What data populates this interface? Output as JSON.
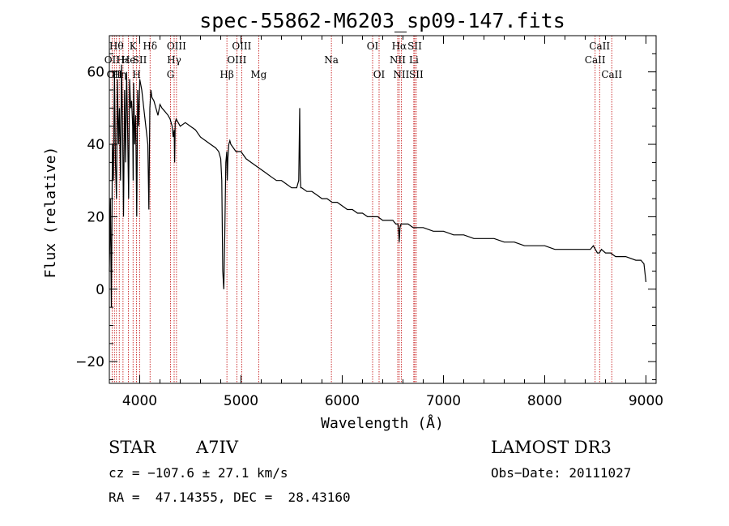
{
  "chart_data": {
    "type": "line",
    "title": "spec-55862-M6203_sp09-147.fits",
    "xlabel": "Wavelength (Å)",
    "ylabel": "Flux (relative)",
    "xlim": [
      3700,
      9100
    ],
    "ylim": [
      -26,
      70
    ],
    "xticks": [
      4000,
      5000,
      6000,
      7000,
      8000,
      9000
    ],
    "yticks": [
      -20,
      0,
      20,
      40,
      60
    ],
    "colors": {
      "line": "#000000",
      "markers": "#c00000",
      "axes": "#000000"
    },
    "spectrum": {
      "name": "flux",
      "x": [
        3700,
        3710,
        3720,
        3730,
        3740,
        3750,
        3760,
        3770,
        3780,
        3790,
        3800,
        3810,
        3820,
        3830,
        3840,
        3850,
        3860,
        3870,
        3880,
        3890,
        3900,
        3910,
        3920,
        3930,
        3935,
        3940,
        3950,
        3960,
        3970,
        3980,
        3990,
        4000,
        4020,
        4040,
        4060,
        4080,
        4090,
        4100,
        4110,
        4120,
        4140,
        4160,
        4180,
        4200,
        4220,
        4250,
        4280,
        4300,
        4320,
        4330,
        4340,
        4345,
        4350,
        4360,
        4380,
        4400,
        4450,
        4500,
        4550,
        4600,
        4650,
        4700,
        4750,
        4780,
        4800,
        4810,
        4820,
        4830,
        4840,
        4850,
        4860,
        4865,
        4870,
        4880,
        4890,
        4900,
        4950,
        5000,
        5050,
        5100,
        5150,
        5200,
        5250,
        5300,
        5350,
        5400,
        5450,
        5500,
        5550,
        5570,
        5575,
        5580,
        5585,
        5590,
        5600,
        5650,
        5700,
        5750,
        5800,
        5850,
        5900,
        5950,
        6000,
        6050,
        6100,
        6150,
        6200,
        6250,
        6300,
        6350,
        6400,
        6450,
        6500,
        6530,
        6550,
        6560,
        6563,
        6570,
        6580,
        6600,
        6650,
        6700,
        6750,
        6800,
        6900,
        7000,
        7100,
        7200,
        7300,
        7400,
        7500,
        7600,
        7700,
        7800,
        7900,
        8000,
        8100,
        8200,
        8300,
        8400,
        8450,
        8480,
        8500,
        8520,
        8540,
        8560,
        8600,
        8650,
        8700,
        8800,
        8900,
        8950,
        8980,
        9000
      ],
      "y": [
        5,
        25,
        -5,
        40,
        30,
        60,
        35,
        25,
        58,
        40,
        50,
        30,
        62,
        45,
        20,
        55,
        35,
        60,
        45,
        25,
        58,
        50,
        52,
        45,
        30,
        57,
        40,
        48,
        20,
        55,
        45,
        58,
        55,
        50,
        45,
        40,
        22,
        50,
        55,
        53,
        52,
        50,
        48,
        51,
        50,
        49,
        48,
        47,
        45,
        42,
        44,
        35,
        46,
        47,
        46,
        45,
        46,
        45,
        44,
        42,
        41,
        40,
        39,
        38,
        36,
        30,
        5,
        0,
        15,
        35,
        38,
        30,
        36,
        40,
        41,
        40,
        38,
        38,
        36,
        35,
        34,
        33,
        32,
        31,
        30,
        30,
        29,
        28,
        28,
        30,
        40,
        50,
        32,
        28,
        28,
        27,
        27,
        26,
        25,
        25,
        24,
        24,
        23,
        22,
        22,
        21,
        21,
        20,
        20,
        20,
        19,
        19,
        19,
        18,
        18,
        15,
        13,
        17,
        18,
        18,
        18,
        17,
        17,
        17,
        16,
        16,
        15,
        15,
        14,
        14,
        14,
        13,
        13,
        12,
        12,
        12,
        11,
        11,
        11,
        11,
        11,
        12,
        11,
        10,
        10,
        11,
        10,
        10,
        9,
        9,
        8,
        8,
        7,
        2
      ]
    },
    "line_markers": [
      {
        "wl": 3727,
        "label": "OII",
        "row": 2
      },
      {
        "wl": 3750,
        "label": "OII",
        "row": 3
      },
      {
        "wl": 3770,
        "label": "Hθ",
        "row": 1
      },
      {
        "wl": 3798,
        "label": "Hη",
        "row": 3
      },
      {
        "wl": 3835,
        "label": "Hε",
        "row": 2
      },
      {
        "wl": 3889,
        "label": "He",
        "row": 2
      },
      {
        "wl": 3934,
        "label": "K",
        "row": 1
      },
      {
        "wl": 3969,
        "label": "H",
        "row": 3
      },
      {
        "wl": 4000,
        "label": "SII",
        "row": 2
      },
      {
        "wl": 4102,
        "label": "Hδ",
        "row": 1
      },
      {
        "wl": 4304,
        "label": "G",
        "row": 3
      },
      {
        "wl": 4340,
        "label": "Hγ",
        "row": 2
      },
      {
        "wl": 4363,
        "label": "OIII",
        "row": 1
      },
      {
        "wl": 4861,
        "label": "Hβ",
        "row": 3
      },
      {
        "wl": 4959,
        "label": "OIII",
        "row": 2
      },
      {
        "wl": 5007,
        "label": "OIII",
        "row": 1
      },
      {
        "wl": 5175,
        "label": "Mg",
        "row": 3
      },
      {
        "wl": 5893,
        "label": "Na",
        "row": 2
      },
      {
        "wl": 6300,
        "label": "OI",
        "row": 1
      },
      {
        "wl": 6364,
        "label": "OI",
        "row": 3
      },
      {
        "wl": 6548,
        "label": "NII",
        "row": 2
      },
      {
        "wl": 6563,
        "label": "Hα",
        "row": 1
      },
      {
        "wl": 6583,
        "label": "NII",
        "row": 3
      },
      {
        "wl": 6707,
        "label": "Li",
        "row": 2
      },
      {
        "wl": 6716,
        "label": "SII",
        "row": 1
      },
      {
        "wl": 6731,
        "label": "SII",
        "row": 3
      },
      {
        "wl": 8498,
        "label": "CaII",
        "row": 2
      },
      {
        "wl": 8542,
        "label": "CaII",
        "row": 1
      },
      {
        "wl": 8662,
        "label": "CaII",
        "row": 3
      }
    ]
  },
  "info": {
    "class": "STAR",
    "subclass": "A7IV",
    "survey": "LAMOST DR3",
    "cz": "cz = −107.6 ± 27.1 km/s",
    "obs_date": "Obs−Date: 20111027",
    "coords": "RA =  47.14355, DEC =  28.43160"
  }
}
